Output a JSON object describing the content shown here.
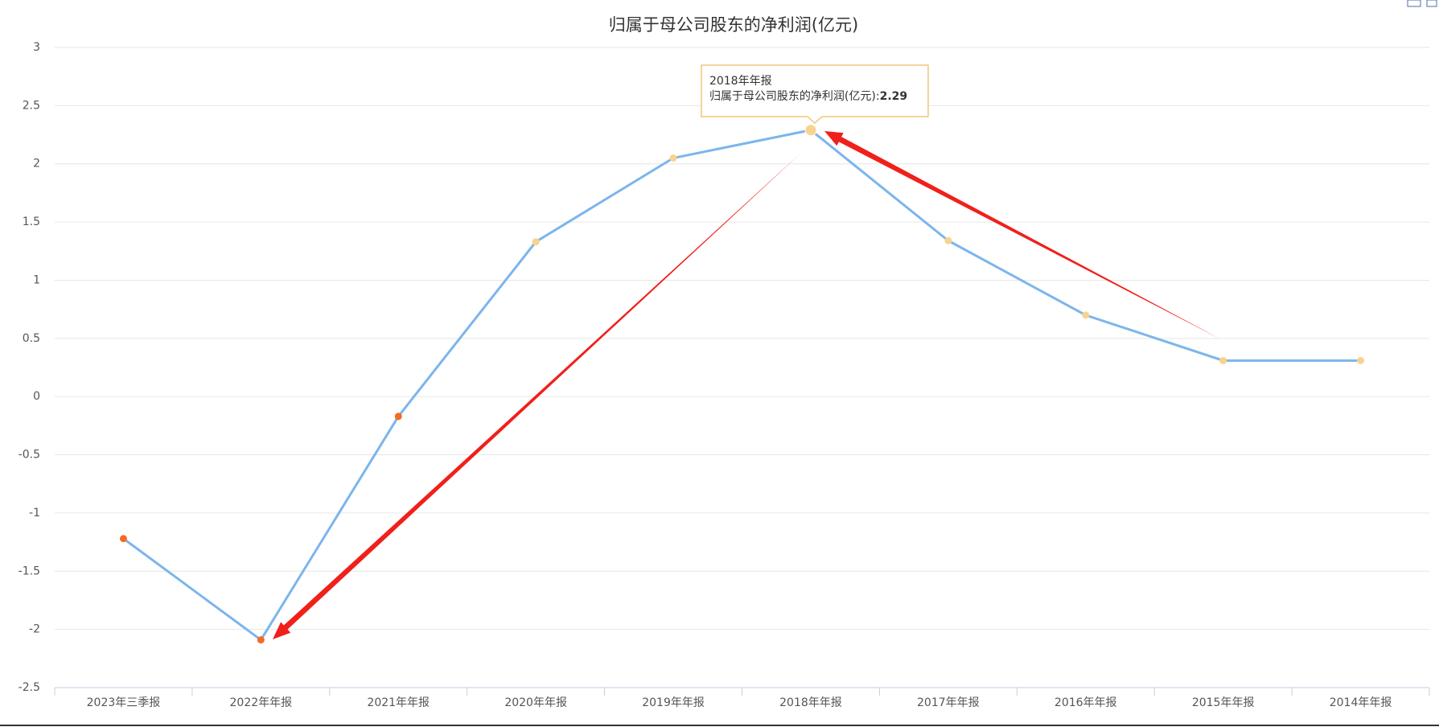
{
  "chart_data": {
    "type": "line",
    "title": "归属于母公司股东的净利润(亿元)",
    "categories": [
      "2023年三季报",
      "2022年年报",
      "2021年年报",
      "2020年年报",
      "2019年年报",
      "2018年年报",
      "2017年年报",
      "2016年年报",
      "2015年年报",
      "2014年年报"
    ],
    "values": [
      -1.22,
      -2.09,
      -0.17,
      1.33,
      2.05,
      2.29,
      1.34,
      0.7,
      0.31,
      0.31
    ],
    "color": "#7cb5ec",
    "marker_colors": {
      "negative": "#f36c21",
      "positive": "#f8d38f"
    },
    "ylim": [
      -2.5,
      3
    ],
    "yticks": [
      -2.5,
      -2,
      -1.5,
      -1,
      -0.5,
      0,
      0.5,
      1,
      1.5,
      2,
      2.5,
      3
    ],
    "grid": true
  },
  "tooltip": {
    "index": 5,
    "label": "归属于母公司股东的净利润(亿元):"
  }
}
